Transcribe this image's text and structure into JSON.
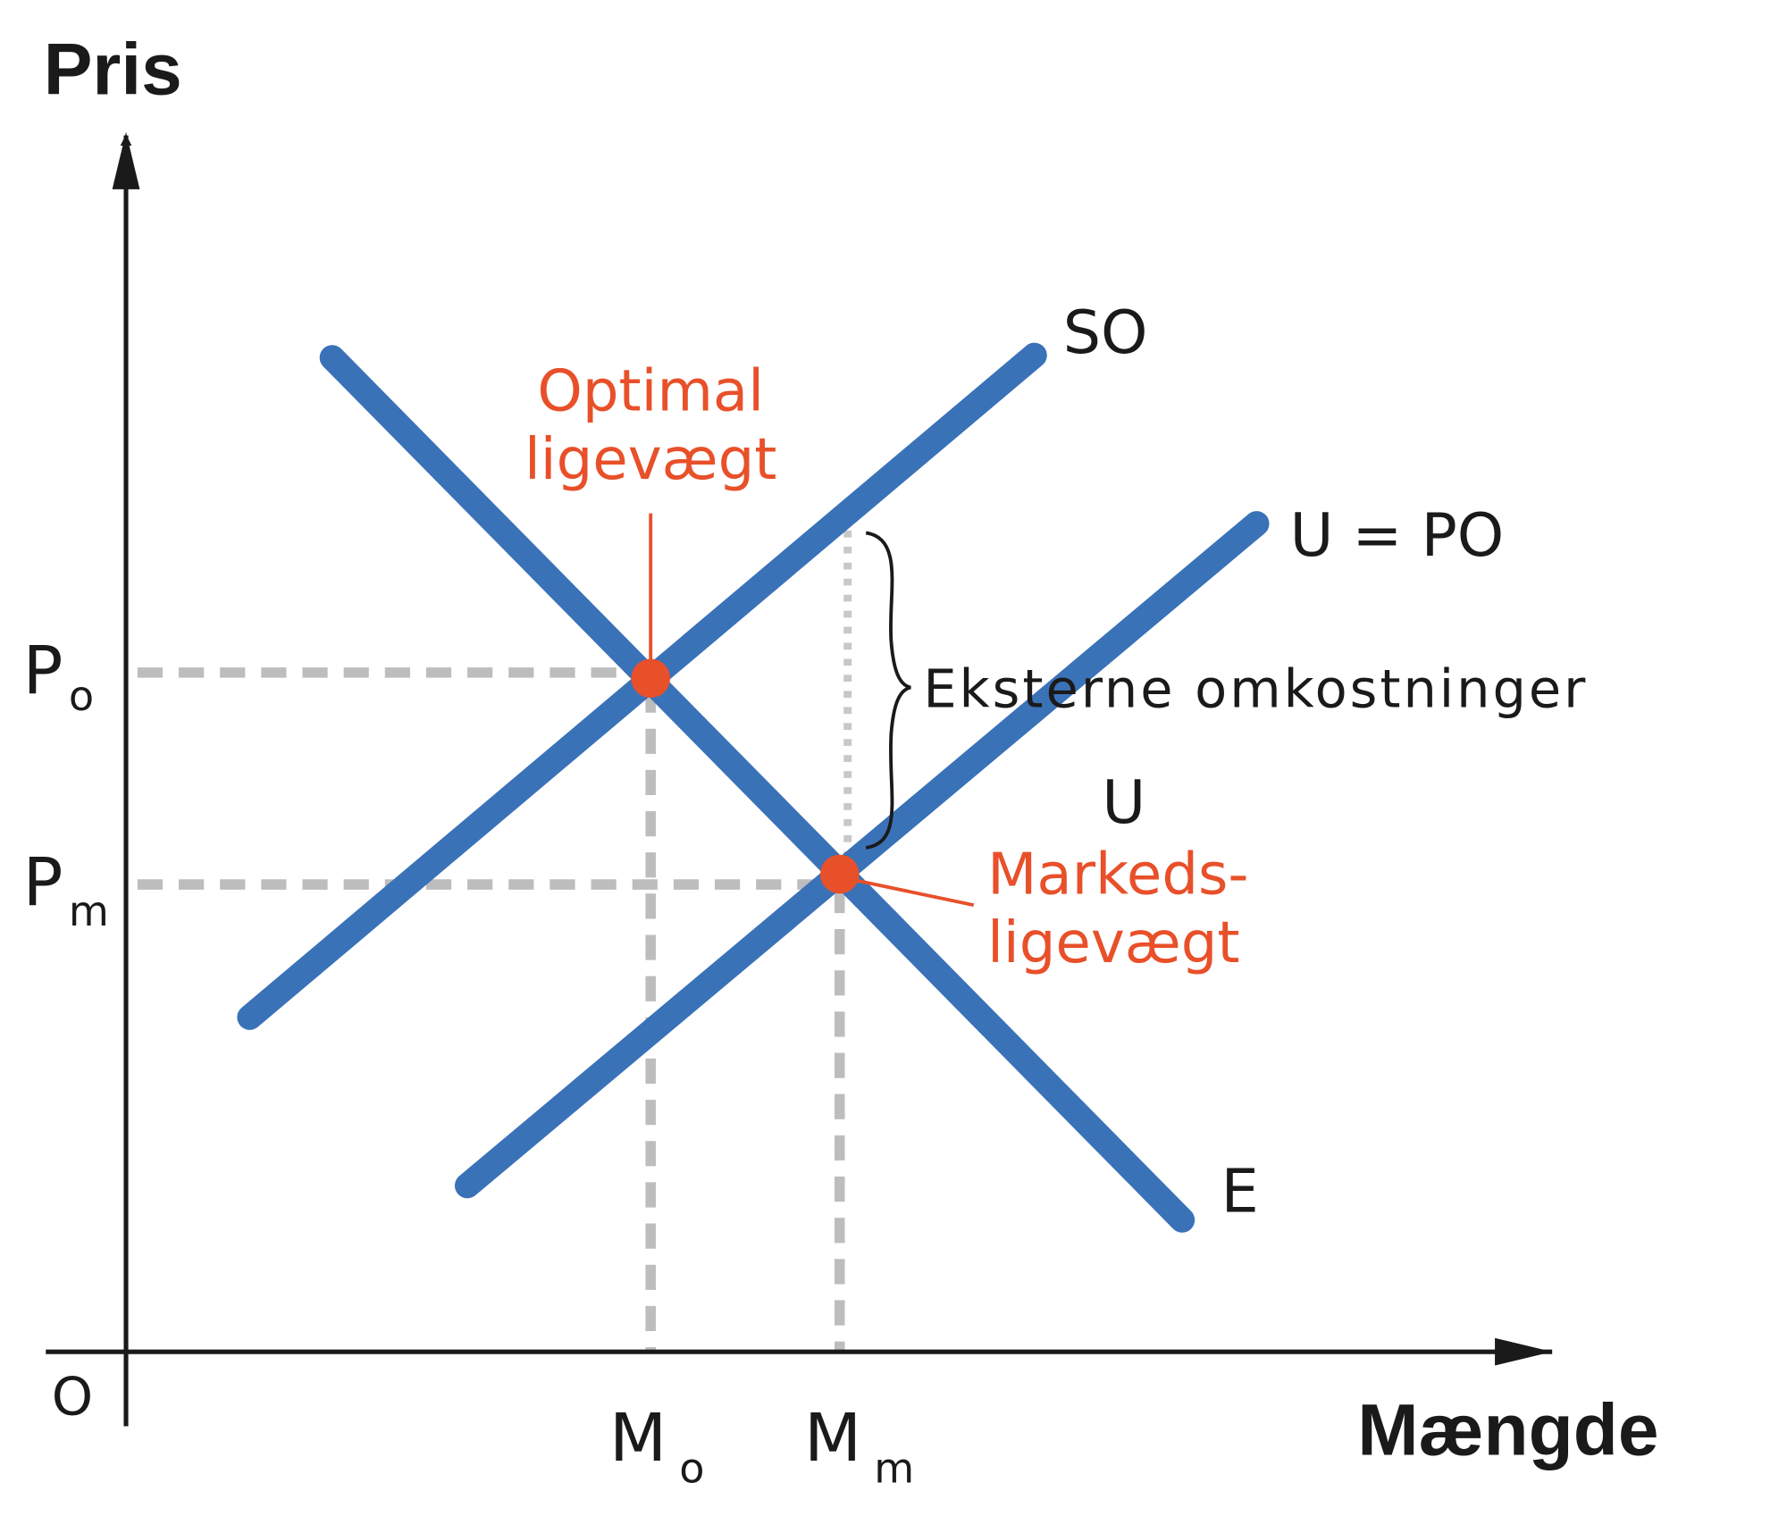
{
  "axes": {
    "y_label": "Pris",
    "x_label": "Mængde",
    "origin": "O"
  },
  "y_ticks": [
    {
      "main": "P",
      "sub": "o"
    },
    {
      "main": "P",
      "sub": "m"
    }
  ],
  "x_ticks": [
    {
      "main": "M",
      "sub": "o"
    },
    {
      "main": "M",
      "sub": "m"
    }
  ],
  "curves": [
    {
      "label": "SO"
    },
    {
      "label": "U = PO"
    },
    {
      "label": "E"
    }
  ],
  "annotations": {
    "optimal": [
      "Optimal",
      "ligevægt"
    ],
    "market": [
      "Markeds-",
      "ligevægt"
    ],
    "external": "Eksterne omkostninger",
    "u": "U"
  }
}
